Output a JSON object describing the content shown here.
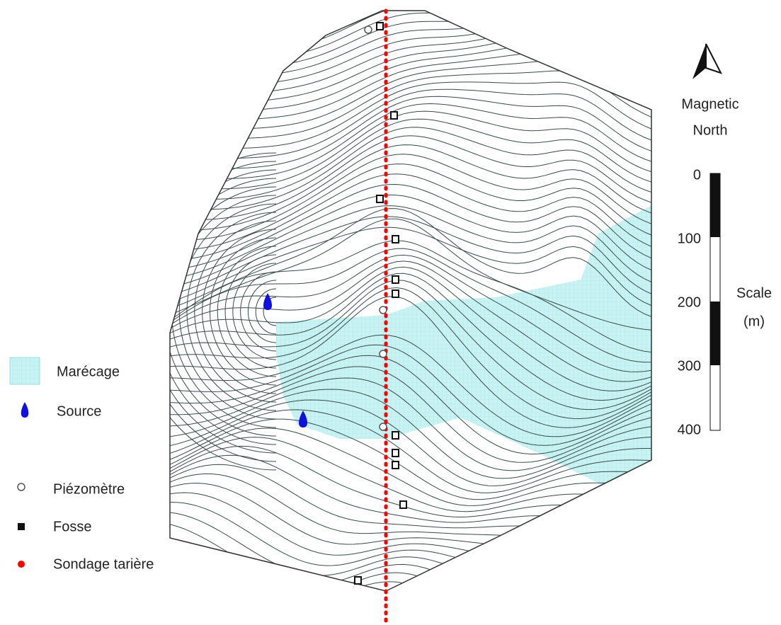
{
  "legend": [
    {
      "label": "Marécage"
    },
    {
      "label": "Source"
    },
    {
      "label": "Piézomètre"
    },
    {
      "label": "Fosse"
    },
    {
      "label": "Sondage tarière"
    }
  ],
  "north": {
    "lines": [
      "Magnetic",
      "North"
    ]
  },
  "scale": {
    "title": [
      "Scale",
      "(m)"
    ],
    "ticks": [
      0,
      100,
      200,
      300,
      400
    ]
  }
}
